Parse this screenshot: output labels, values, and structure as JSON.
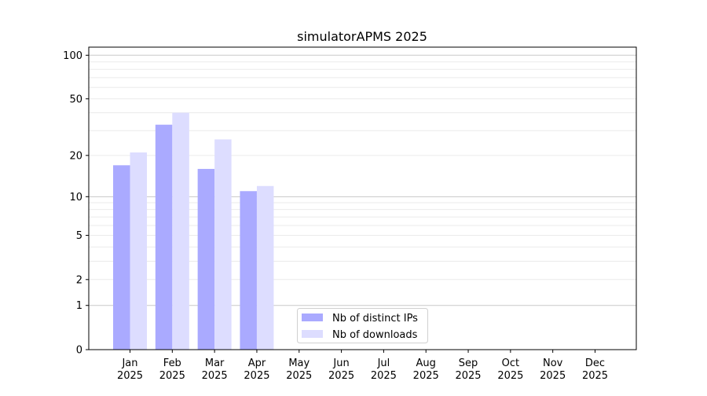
{
  "chart_data": {
    "type": "bar",
    "title": "simulatorAPMS 2025",
    "xlabel": "",
    "ylabel": "",
    "yscale": "log(1+y)",
    "ylim": [
      0,
      110
    ],
    "yticks": [
      0,
      1,
      2,
      5,
      10,
      20,
      50,
      100
    ],
    "grid": true,
    "legend_position": "bottom-center",
    "categories": [
      "Jan\n2025",
      "Feb\n2025",
      "Mar\n2025",
      "Apr\n2025",
      "May\n2025",
      "Jun\n2025",
      "Jul\n2025",
      "Aug\n2025",
      "Sep\n2025",
      "Oct\n2025",
      "Nov\n2025",
      "Dec\n2025"
    ],
    "series": [
      {
        "name": "Nb of distinct IPs",
        "color": "#aaaaff",
        "values": [
          17,
          33,
          16,
          11,
          null,
          null,
          null,
          null,
          null,
          null,
          null,
          null
        ]
      },
      {
        "name": "Nb of downloads",
        "color": "#ddddff",
        "values": [
          21,
          40,
          26,
          12,
          null,
          null,
          null,
          null,
          null,
          null,
          null,
          null
        ]
      }
    ]
  }
}
